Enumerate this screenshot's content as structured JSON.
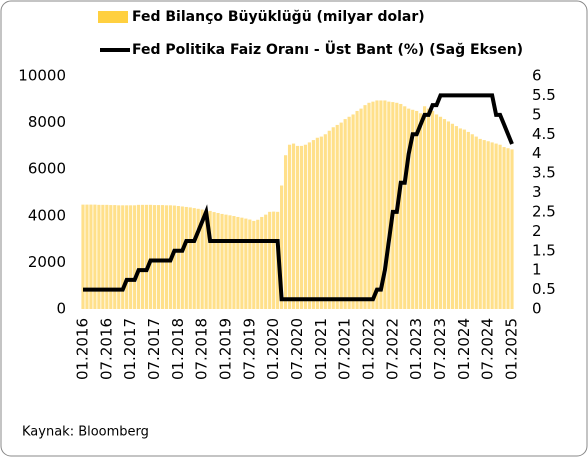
{
  "chart_data": {
    "type": "combo",
    "categories": [
      "01.2016",
      null,
      null,
      null,
      null,
      null,
      "07.2016",
      null,
      null,
      null,
      null,
      null,
      "01.2017",
      null,
      null,
      null,
      null,
      null,
      "07.2017",
      null,
      null,
      null,
      null,
      null,
      "01.2018",
      null,
      null,
      null,
      null,
      null,
      "07.2018",
      null,
      null,
      null,
      null,
      null,
      "01.2019",
      null,
      null,
      null,
      null,
      null,
      "07.2019",
      null,
      null,
      null,
      null,
      null,
      "01.2020",
      null,
      null,
      null,
      null,
      null,
      "07.2020",
      null,
      null,
      null,
      null,
      null,
      "01.2021",
      null,
      null,
      null,
      null,
      null,
      "07.2021",
      null,
      null,
      null,
      null,
      null,
      "01.2022",
      null,
      null,
      null,
      null,
      null,
      "07.2022",
      null,
      null,
      null,
      null,
      null,
      "01.2023",
      null,
      null,
      null,
      null,
      null,
      "07.2023",
      null,
      null,
      null,
      null,
      null,
      "01.2024",
      null,
      null,
      null,
      null,
      null,
      "07.2024",
      null,
      null,
      null,
      null,
      null,
      "01.2025"
    ],
    "series": [
      {
        "name": "Fed Bilanço Büyüklüğü (milyar dolar)",
        "type": "bar",
        "color": "#ffe08a",
        "values": [
          4480,
          4480,
          4480,
          4480,
          4470,
          4470,
          4470,
          4460,
          4460,
          4450,
          4450,
          4450,
          4450,
          4450,
          4470,
          4470,
          4470,
          4470,
          4460,
          4460,
          4460,
          4450,
          4450,
          4440,
          4420,
          4400,
          4380,
          4360,
          4330,
          4300,
          4270,
          4240,
          4210,
          4160,
          4120,
          4080,
          4050,
          4020,
          3990,
          3950,
          3920,
          3880,
          3840,
          3780,
          3830,
          3950,
          4050,
          4170,
          4180,
          4170,
          5300,
          6600,
          7050,
          7100,
          7000,
          7000,
          7050,
          7150,
          7250,
          7350,
          7400,
          7500,
          7650,
          7800,
          7900,
          8000,
          8150,
          8250,
          8350,
          8500,
          8600,
          8750,
          8850,
          8900,
          8950,
          8950,
          8950,
          8900,
          8880,
          8850,
          8800,
          8700,
          8600,
          8550,
          8500,
          8400,
          8700,
          8600,
          8500,
          8350,
          8250,
          8150,
          8050,
          7950,
          7850,
          7750,
          7700,
          7600,
          7500,
          7400,
          7300,
          7250,
          7200,
          7150,
          7100,
          7050,
          6950,
          6900,
          6850
        ]
      },
      {
        "name": "Fed Politika Faiz Oranı - Üst Bant (%) (Sağ Eksen)",
        "type": "line",
        "axis": "y2",
        "color": "#000000",
        "values": [
          0.5,
          0.5,
          0.5,
          0.5,
          0.5,
          0.5,
          0.5,
          0.5,
          0.5,
          0.5,
          0.5,
          0.75,
          0.75,
          0.75,
          1,
          1,
          1,
          1.25,
          1.25,
          1.25,
          1.25,
          1.25,
          1.25,
          1.5,
          1.5,
          1.5,
          1.75,
          1.75,
          1.75,
          2,
          2.25,
          2.5,
          1.75,
          1.75,
          1.75,
          1.75,
          1.75,
          1.75,
          1.75,
          1.75,
          1.75,
          1.75,
          1.75,
          1.75,
          1.75,
          1.75,
          1.75,
          1.75,
          1.75,
          1.75,
          0.25,
          0.25,
          0.25,
          0.25,
          0.25,
          0.25,
          0.25,
          0.25,
          0.25,
          0.25,
          0.25,
          0.25,
          0.25,
          0.25,
          0.25,
          0.25,
          0.25,
          0.25,
          0.25,
          0.25,
          0.25,
          0.25,
          0.25,
          0.25,
          0.5,
          0.5,
          1,
          1.75,
          2.5,
          2.5,
          3.25,
          3.25,
          4,
          4.5,
          4.5,
          4.75,
          5,
          5,
          5.25,
          5.25,
          5.5,
          5.5,
          5.5,
          5.5,
          5.5,
          5.5,
          5.5,
          5.5,
          5.5,
          5.5,
          5.5,
          5.5,
          5.5,
          5.5,
          5,
          5,
          4.75,
          4.5,
          4.25
        ]
      }
    ],
    "ylim": [
      0,
      10000
    ],
    "yticks": [
      0,
      2000,
      4000,
      6000,
      8000,
      10000
    ],
    "y2lim": [
      0,
      6
    ],
    "y2ticks": [
      0,
      0.5,
      1,
      1.5,
      2,
      2.5,
      3,
      3.5,
      4,
      4.5,
      5,
      5.5,
      6
    ],
    "source": "Kaynak: Bloomberg"
  }
}
